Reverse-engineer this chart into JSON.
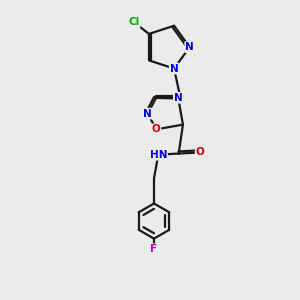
{
  "background_color": "#ebebeb",
  "bond_color": "#1a1a1a",
  "atom_colors": {
    "N": "#0000ee",
    "O": "#dd0000",
    "Cl": "#00aa00",
    "F": "#cc00cc",
    "H": "#444444",
    "C": "#1a1a1a"
  },
  "figsize": [
    3.0,
    3.0
  ],
  "dpi": 100,
  "xlim": [
    0,
    10
  ],
  "ylim": [
    0,
    14
  ]
}
